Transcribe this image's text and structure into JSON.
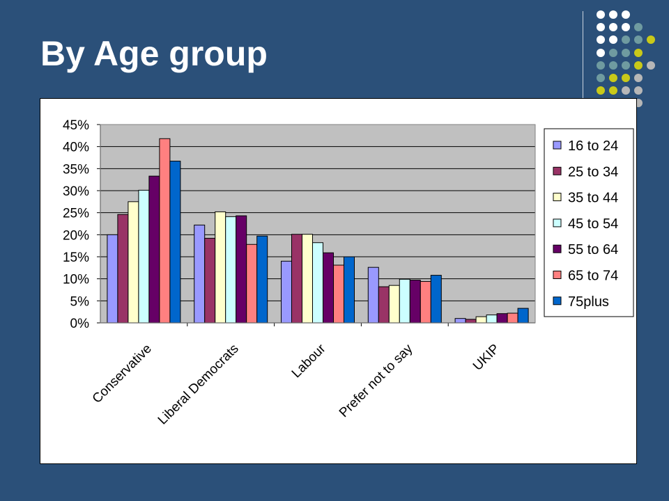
{
  "slide": {
    "title": "By Age group"
  },
  "decoration": {
    "dot_colors": [
      "#ffffff",
      "#6f9ba0",
      "#c9c919",
      "#b7b7b7"
    ]
  },
  "chart_data": {
    "type": "bar",
    "categories": [
      "Conservative",
      "Liberal Democrats",
      "Labour",
      "Prefer not to say",
      "UKIP"
    ],
    "series": [
      {
        "name": "16 to 24",
        "color": "#9999ff",
        "values": [
          20,
          22.2,
          14,
          12.6,
          1
        ]
      },
      {
        "name": "25 to 34",
        "color": "#993366",
        "values": [
          24.6,
          19.2,
          20.1,
          8.2,
          0.8
        ]
      },
      {
        "name": "35 to 44",
        "color": "#ffffcc",
        "values": [
          27.5,
          25.2,
          20.1,
          8.5,
          1.4
        ]
      },
      {
        "name": "45 to 54",
        "color": "#ccffff",
        "values": [
          30.1,
          24.1,
          18.2,
          9.9,
          1.8
        ]
      },
      {
        "name": "55 to 64",
        "color": "#660066",
        "values": [
          33.3,
          24.3,
          15.9,
          9.7,
          2.1
        ]
      },
      {
        "name": "65 to 74",
        "color": "#ff8080",
        "values": [
          41.8,
          17.8,
          13.1,
          9.4,
          2.2
        ]
      },
      {
        "name": "75plus",
        "color": "#0066cc",
        "values": [
          36.7,
          19.7,
          15,
          10.8,
          3.3
        ]
      }
    ],
    "y_ticks": [
      "0%",
      "5%",
      "10%",
      "15%",
      "20%",
      "25%",
      "30%",
      "35%",
      "40%",
      "45%"
    ],
    "ylim": [
      0,
      45
    ],
    "y_unit": "%",
    "grid": true,
    "plot_background": "#c0c0c0",
    "legend_position": "right"
  }
}
